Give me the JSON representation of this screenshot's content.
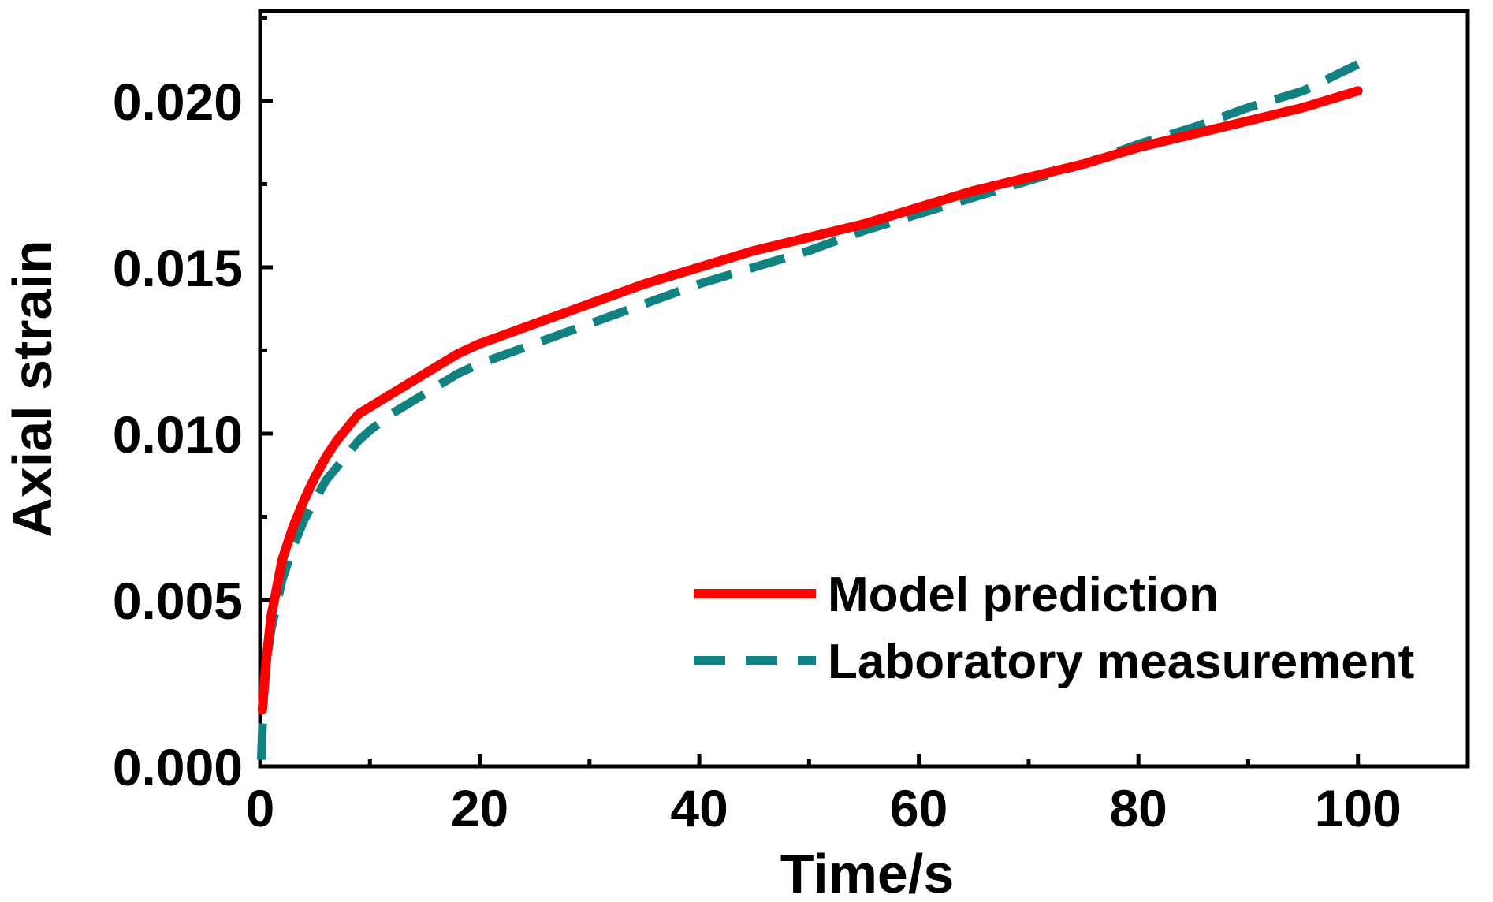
{
  "chart_data": {
    "type": "line",
    "title": "",
    "xlabel": "Time/s",
    "ylabel": "Axial strain",
    "xlim": [
      0,
      110
    ],
    "ylim": [
      0,
      0.0227
    ],
    "x_ticks": [
      0,
      20,
      40,
      60,
      80,
      100
    ],
    "x_tick_labels": [
      "0",
      "20",
      "40",
      "60",
      "80",
      "100"
    ],
    "y_ticks": [
      0,
      0.005,
      0.01,
      0.015,
      0.02
    ],
    "y_tick_labels": [
      "0.000",
      "0.005",
      "0.010",
      "0.015",
      "0.020"
    ],
    "grid": false,
    "legend_position": "bottom-right",
    "series": [
      {
        "name": "Model prediction",
        "color": "#ff0000",
        "style": "solid",
        "x": [
          0.2,
          0.5,
          1,
          2,
          3,
          4,
          5,
          6,
          7,
          8,
          9,
          10,
          12,
          14,
          16,
          18,
          20,
          25,
          30,
          35,
          40,
          45,
          50,
          55,
          60,
          65,
          70,
          75,
          80,
          85,
          90,
          95,
          100
        ],
        "y": [
          0.0017,
          0.003,
          0.0045,
          0.0062,
          0.0072,
          0.008,
          0.0087,
          0.0093,
          0.0098,
          0.0102,
          0.0106,
          0.0108,
          0.0112,
          0.0116,
          0.012,
          0.0124,
          0.0127,
          0.0133,
          0.0139,
          0.0145,
          0.015,
          0.0155,
          0.0159,
          0.0163,
          0.0168,
          0.0173,
          0.0177,
          0.0181,
          0.0186,
          0.019,
          0.0194,
          0.0198,
          0.0203
        ]
      },
      {
        "name": "Laboratory measurement",
        "color": "#128181",
        "style": "dashed",
        "x": [
          0.1,
          0.3,
          0.6,
          1,
          2,
          3,
          4,
          5,
          6,
          7,
          8,
          9,
          10,
          12,
          14,
          16,
          18,
          20,
          25,
          30,
          35,
          40,
          45,
          50,
          55,
          60,
          65,
          70,
          75,
          80,
          85,
          90,
          95,
          100
        ],
        "y": [
          0.0002,
          0.002,
          0.0032,
          0.0041,
          0.0056,
          0.0066,
          0.0074,
          0.008,
          0.0086,
          0.009,
          0.0094,
          0.0098,
          0.0101,
          0.0106,
          0.011,
          0.0114,
          0.0118,
          0.0121,
          0.0127,
          0.0133,
          0.0139,
          0.0145,
          0.015,
          0.0155,
          0.0161,
          0.0166,
          0.0171,
          0.0176,
          0.0181,
          0.0187,
          0.0192,
          0.0198,
          0.0203,
          0.0211
        ]
      }
    ]
  }
}
